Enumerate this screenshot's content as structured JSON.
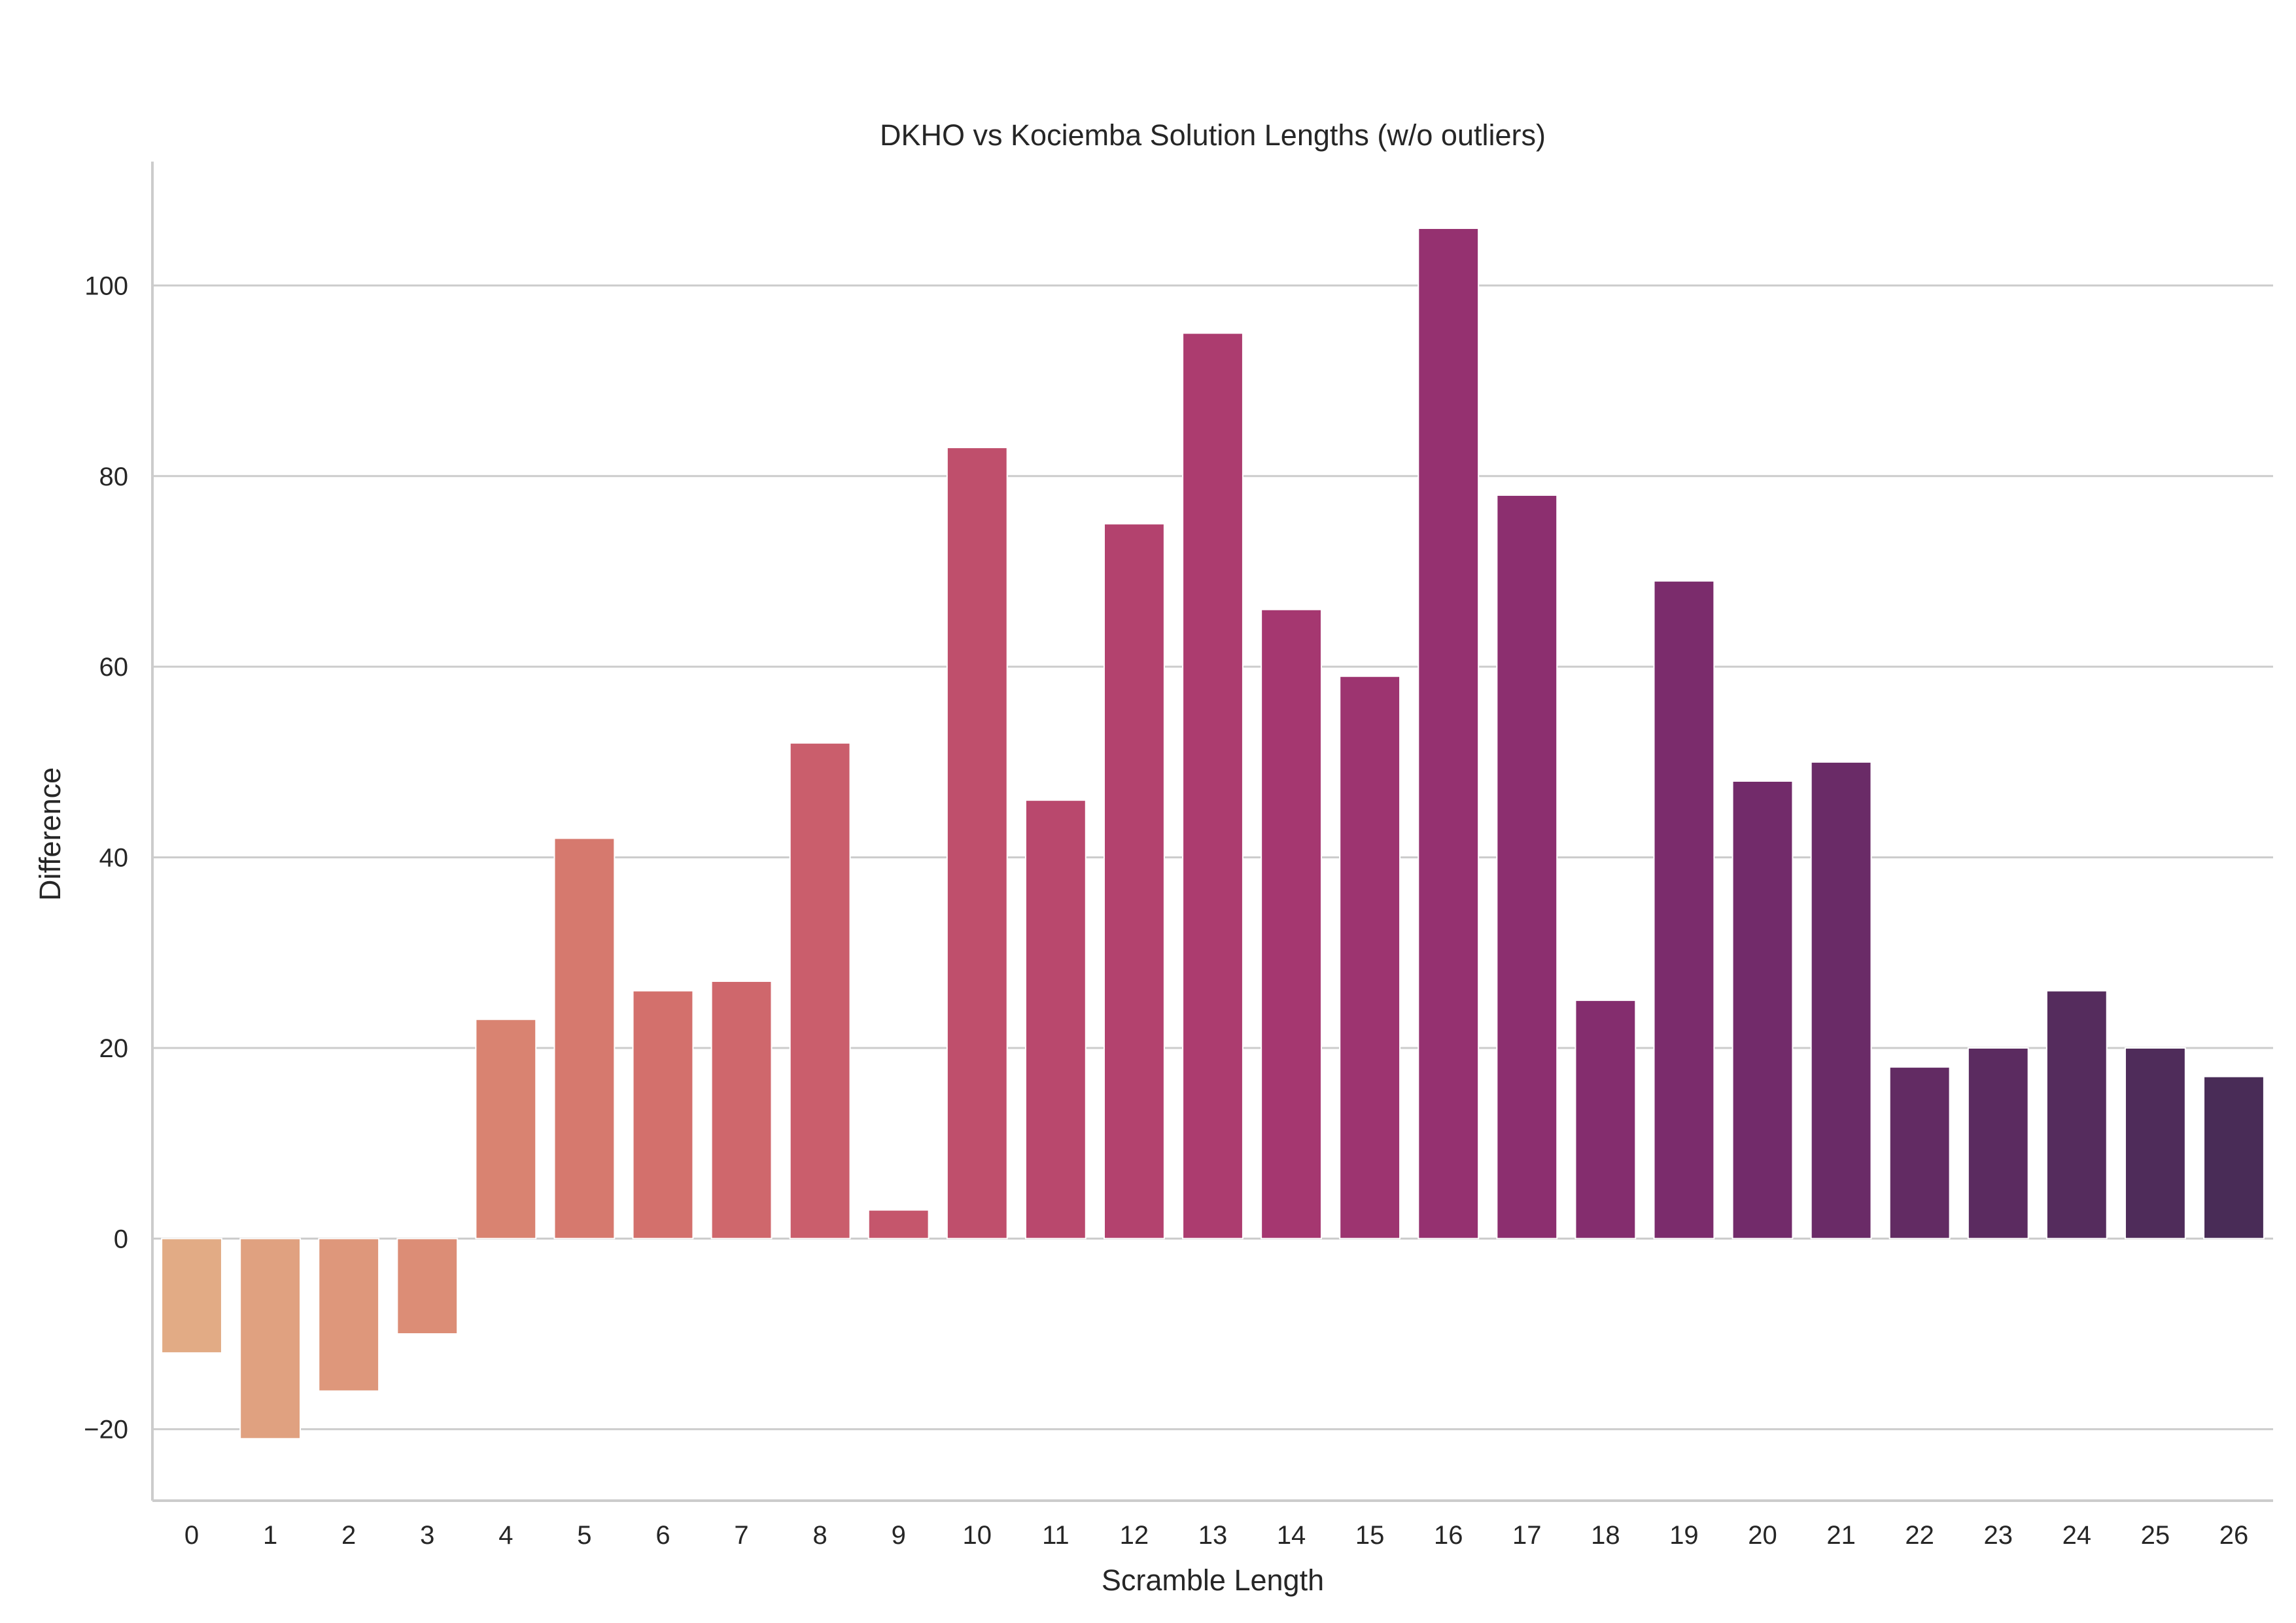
{
  "chart_data": {
    "type": "bar",
    "title": "DKHO vs Kociemba Solution Lengths (w/o outliers)",
    "xlabel": "Scramble Length",
    "ylabel": "Difference",
    "categories": [
      "0",
      "1",
      "2",
      "3",
      "4",
      "5",
      "6",
      "7",
      "8",
      "9",
      "10",
      "11",
      "12",
      "13",
      "14",
      "15",
      "16",
      "17",
      "18",
      "19",
      "20",
      "21",
      "22",
      "23",
      "24",
      "25",
      "26"
    ],
    "values": [
      -12,
      -21,
      -16,
      -10,
      23,
      42,
      26,
      27,
      52,
      3,
      83,
      46,
      75,
      95,
      66,
      59,
      106,
      78,
      25,
      69,
      48,
      50,
      18,
      20,
      26,
      20,
      17
    ],
    "ylim": [
      -27.5,
      113
    ],
    "yticks": [
      -20,
      0,
      20,
      40,
      60,
      80,
      100
    ],
    "ytick_labels": [
      "−20",
      "0",
      "20",
      "40",
      "60",
      "80",
      "100"
    ],
    "grid": "horizontal",
    "colors": [
      "#e2ab85",
      "#e0a180",
      "#de977b",
      "#dc8d76",
      "#d98371",
      "#d6796e",
      "#d3706c",
      "#cf676c",
      "#ca5e6c",
      "#c5566c",
      "#bf4f6c",
      "#b9486d",
      "#b3426e",
      "#ac3c6f",
      "#a53770",
      "#9d3470",
      "#953170",
      "#8c2f6f",
      "#842d6e",
      "#7b2c6c",
      "#722b6a",
      "#6a2b67",
      "#622b63",
      "#5b2b60",
      "#552c5d",
      "#4f2c5a",
      "#492c57"
    ]
  }
}
